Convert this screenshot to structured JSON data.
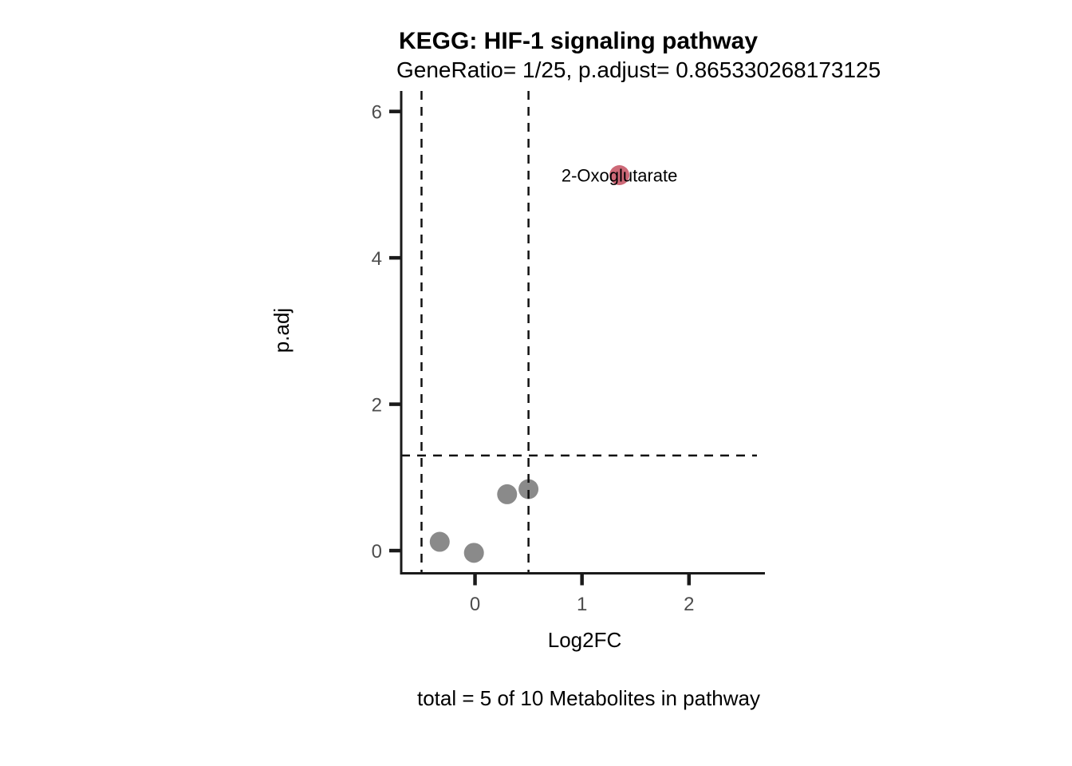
{
  "chart_data": {
    "type": "scatter",
    "title": "KEGG: HIF-1 signaling pathway",
    "subtitle": "GeneRatio= 1/25, p.adjust= 0.865330268173125",
    "xlabel": "Log2FC",
    "ylabel": "p.adj",
    "caption": "total = 5 of 10 Metabolites in pathway",
    "xlim": [
      -0.69,
      2.71
    ],
    "ylim": [
      -0.31,
      6.28
    ],
    "x_ticks": [
      "0",
      "1",
      "2"
    ],
    "y_ticks": [
      "0",
      "2",
      "4",
      "6"
    ],
    "x_tick_values": [
      0,
      1,
      2
    ],
    "y_tick_values": [
      0,
      2,
      4,
      6
    ],
    "grid": false,
    "legend": "none",
    "thresholds": {
      "vlines": [
        -0.5,
        0.5
      ],
      "hline": 1.3
    },
    "points": [
      {
        "x": 1.35,
        "y": 5.13,
        "label": "2-Oxoglutarate",
        "significant": true
      },
      {
        "x": 0.5,
        "y": 0.84,
        "label": "",
        "significant": false
      },
      {
        "x": 0.3,
        "y": 0.77,
        "label": "",
        "significant": false
      },
      {
        "x": -0.33,
        "y": 0.12,
        "label": "",
        "significant": false
      },
      {
        "x": -0.01,
        "y": -0.03,
        "label": "",
        "significant": false
      }
    ],
    "point_radius": 12.5,
    "colors": {
      "significant_point": "#cd6977",
      "nonsignificant_point": "#8a8a8a",
      "axis_line": "#1a1a1a",
      "tick_label": "#4d4d4d",
      "threshold_line": "#111111",
      "background": "#ffffff"
    }
  }
}
